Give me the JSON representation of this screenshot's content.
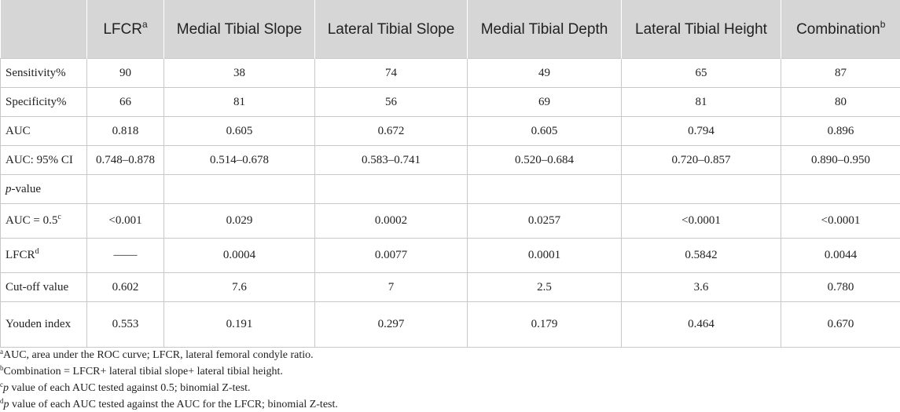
{
  "table": {
    "columns": [
      {
        "label": "LFCR",
        "note": "a"
      },
      {
        "label": "Medial Tibial Slope"
      },
      {
        "label": "Lateral Tibial Slope"
      },
      {
        "label": "Medial Tibial Depth"
      },
      {
        "label": "Lateral Tibial Height"
      },
      {
        "label": "Combination",
        "note": "b"
      }
    ],
    "rows": [
      {
        "label": "Sensitivity%",
        "cells": [
          "90",
          "38",
          "74",
          "49",
          "65",
          "87"
        ]
      },
      {
        "label": "Specificity%",
        "cells": [
          "66",
          "81",
          "56",
          "69",
          "81",
          "80"
        ]
      },
      {
        "label": "AUC",
        "cells": [
          "0.818",
          "0.605",
          "0.672",
          "0.605",
          "0.794",
          "0.896"
        ]
      },
      {
        "label": "AUC: 95% CI",
        "cells": [
          "0.748–0.878",
          "0.514–0.678",
          "0.583–0.741",
          "0.520–0.684",
          "0.720–0.857",
          "0.890–0.950"
        ]
      },
      {
        "label_italic": "p",
        "label": "-value"
      },
      {
        "label": "AUC = 0.5",
        "note": "c",
        "cells": [
          "<0.001",
          "0.029",
          "0.0002",
          "0.0257",
          "<0.0001",
          "<0.0001"
        ]
      },
      {
        "label": "LFCR",
        "note": "d",
        "cells": [
          "——",
          "0.0004",
          "0.0077",
          "0.0001",
          "0.5842",
          "0.0044"
        ]
      },
      {
        "label": "Cut-off value",
        "cells": [
          "0.602",
          "7.6",
          "7",
          "2.5",
          "3.6",
          "0.780"
        ]
      },
      {
        "label": "Youden index",
        "cells": [
          "0.553",
          "0.191",
          "0.297",
          "0.179",
          "0.464",
          "0.670"
        ]
      }
    ],
    "footnotes": [
      {
        "mark": "a",
        "text": "AUC, area under the ROC curve; LFCR, lateral femoral condyle ratio."
      },
      {
        "mark": "b",
        "text": "Combination = LFCR+ lateral tibial slope+ lateral tibial height."
      },
      {
        "mark": "c",
        "italic": "p",
        "text": "value of each AUC tested against 0.5; binomial Z-test."
      },
      {
        "mark": "d",
        "italic": "p",
        "text": "value of each AUC tested against the AUC for the LFCR; binomial Z-test."
      }
    ]
  }
}
